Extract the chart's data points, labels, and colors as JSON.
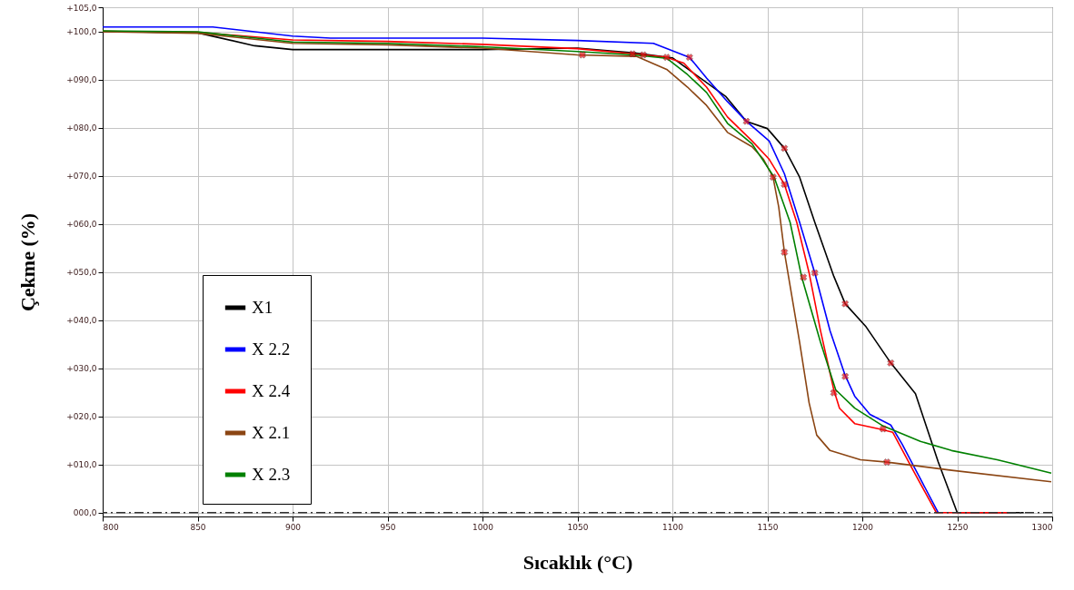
{
  "chart_data": {
    "type": "line",
    "xlabel": "Sıcaklık (°C)",
    "ylabel": "Çekme (%)",
    "xlim": [
      800,
      1300
    ],
    "xticks": [
      800,
      850,
      900,
      950,
      1000,
      1050,
      1100,
      1150,
      1200,
      1250,
      1300
    ],
    "ylim": [
      -0.8,
      105
    ],
    "yticks": [
      {
        "value": 105,
        "label": "+105,0"
      },
      {
        "value": 100,
        "label": "+100,0"
      },
      {
        "value": 90,
        "label": "+090,0"
      },
      {
        "value": 80,
        "label": "+080,0"
      },
      {
        "value": 70,
        "label": "+070,0"
      },
      {
        "value": 60,
        "label": "+060,0"
      },
      {
        "value": 50,
        "label": "+050,0"
      },
      {
        "value": 40,
        "label": "+040,0"
      },
      {
        "value": 30,
        "label": "+030,0"
      },
      {
        "value": 20,
        "label": "+020,0"
      },
      {
        "value": 10,
        "label": "+010,0"
      },
      {
        "value": 0,
        "label": "000,0"
      }
    ],
    "grid": true,
    "legend": "bottom left",
    "ref_lines": [
      {
        "axis": "y",
        "value": 0,
        "color": "#333333",
        "line_style": "dashed"
      }
    ],
    "series": [
      {
        "name": "X1",
        "color": "#000000",
        "x": [
          800,
          850,
          880,
          900,
          1000,
          1050,
          1080,
          1100,
          1128,
          1139,
          1150,
          1159,
          1167,
          1175,
          1185,
          1191,
          1202,
          1215,
          1228,
          1240,
          1250,
          1285
        ],
        "values": [
          100,
          99.7,
          97,
          96.2,
          96.2,
          96.5,
          95.5,
          94.5,
          86.5,
          81.3,
          79.8,
          75.7,
          69.7,
          60.3,
          49.1,
          43.4,
          38.6,
          31.1,
          24.7,
          10.5,
          0,
          0
        ]
      },
      {
        "name": "X 2.2",
        "color": "#0000ff",
        "x": [
          800,
          858,
          900,
          920,
          1000,
          1050,
          1090,
          1109,
          1118,
          1129,
          1139,
          1151,
          1159,
          1167,
          1175,
          1183,
          1191,
          1196,
          1204,
          1215,
          1221,
          1231,
          1240
        ],
        "values": [
          100.9,
          100.9,
          99,
          98.6,
          98.6,
          98.1,
          97.5,
          94.6,
          90.3,
          85.4,
          81.3,
          77.2,
          70.4,
          60.3,
          49.8,
          37.8,
          28.5,
          24.2,
          20.4,
          18.2,
          14.2,
          6.7,
          0
        ]
      },
      {
        "name": "X 2.4",
        "color": "#ff0000",
        "x": [
          800,
          850,
          900,
          950,
          1000,
          1050,
          1080,
          1097,
          1106,
          1118,
          1129,
          1142,
          1151,
          1159,
          1165.5,
          1172,
          1178,
          1185,
          1188,
          1196,
          1211,
          1216,
          1228,
          1239,
          1277
        ],
        "values": [
          100,
          99.8,
          98.2,
          97.9,
          97.3,
          96.4,
          95.3,
          94.6,
          93.4,
          88.4,
          82.2,
          77.2,
          73.4,
          68.2,
          60.3,
          49.8,
          37.8,
          25.5,
          21.7,
          18.5,
          17.2,
          16.7,
          7.9,
          0,
          0
        ]
      },
      {
        "name": "X 2.1",
        "color": "#8b4513",
        "x": [
          800,
          850,
          900,
          950,
          1000,
          1050,
          1081,
          1097,
          1108,
          1118,
          1129,
          1142,
          1148,
          1153,
          1156,
          1159,
          1167,
          1172,
          1176,
          1183,
          1199,
          1213,
          1247,
          1299.5
        ],
        "values": [
          99.9,
          99.6,
          97.5,
          97.2,
          96.5,
          95.1,
          94.8,
          92.1,
          88.4,
          84.6,
          79,
          76,
          73.4,
          69.7,
          63.5,
          54.1,
          35.4,
          22.8,
          16.1,
          12.9,
          11,
          10.5,
          8.8,
          6.4
        ]
      },
      {
        "name": "X 2.3",
        "color": "#008000",
        "x": [
          800,
          850,
          900,
          950,
          1000,
          1050,
          1080,
          1097,
          1108,
          1118,
          1129,
          1142,
          1153.6,
          1162,
          1168,
          1178,
          1186,
          1196,
          1211,
          1230.6,
          1247,
          1271,
          1299.5
        ],
        "values": [
          100.1,
          99.9,
          97.8,
          97.5,
          96.8,
          95.8,
          95.1,
          94.4,
          91,
          87.3,
          80.9,
          76.6,
          69.7,
          60.3,
          49.1,
          35.4,
          25.5,
          21.7,
          18,
          14.8,
          12.9,
          11,
          8.2
        ]
      },
      {
        "type": "scatter",
        "marker": "cross",
        "color": "#e8151b",
        "x": [
          1052.6,
          1079,
          1084.7,
          1097,
          1109,
          1139,
          1159,
          1153,
          1159,
          1159,
          1169,
          1175,
          1191,
          1191,
          1215,
          1185,
          1211,
          1213
        ],
        "values": [
          95.1,
          95.3,
          95.1,
          94.6,
          94.6,
          81.3,
          75.7,
          69.7,
          68.2,
          54.1,
          48.9,
          49.8,
          43.4,
          28.3,
          31.1,
          24.9,
          17.4,
          10.5
        ]
      }
    ]
  }
}
